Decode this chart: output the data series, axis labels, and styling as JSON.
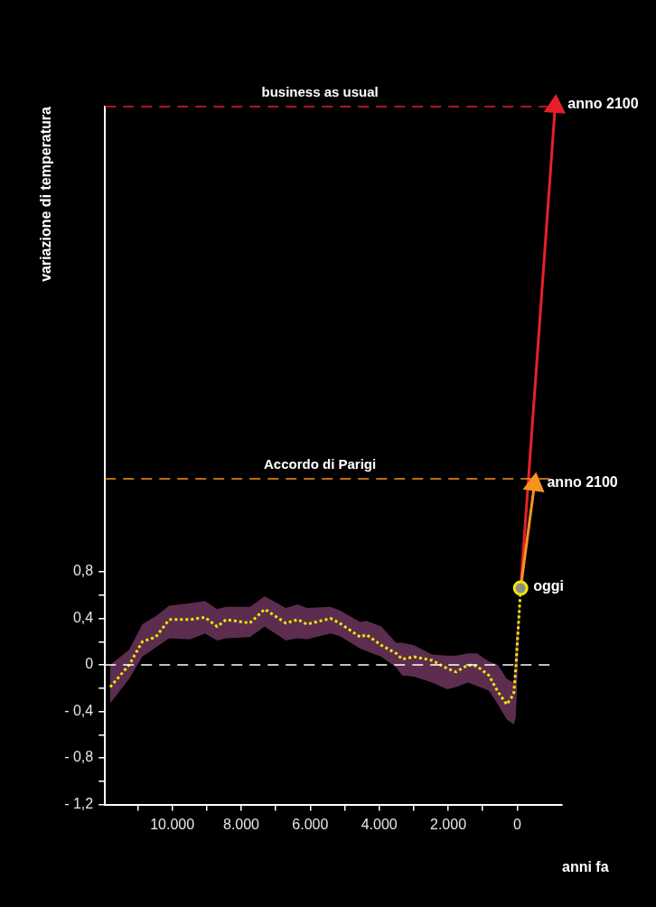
{
  "chart_data": {
    "type": "line",
    "xlabel": "anni fa",
    "ylabel": "variazione di temperatura",
    "xlim": [
      11950,
      -1300
    ],
    "ylim": [
      -1.2,
      4.8
    ],
    "xticks": [
      {
        "value": 11000,
        "label": null
      },
      {
        "value": 10000,
        "label": "10.000"
      },
      {
        "value": 9000,
        "label": null
      },
      {
        "value": 8000,
        "label": "8.000"
      },
      {
        "value": 7000,
        "label": null
      },
      {
        "value": 6000,
        "label": "6.000"
      },
      {
        "value": 5000,
        "label": null
      },
      {
        "value": 4000,
        "label": "4.000"
      },
      {
        "value": 3000,
        "label": null
      },
      {
        "value": 2000,
        "label": "2.000"
      },
      {
        "value": 1000,
        "label": null
      },
      0
    ],
    "yticks": [
      {
        "value": -1.2,
        "label": "- 1,2"
      },
      {
        "value": -1.0,
        "label": null
      },
      {
        "value": -0.8,
        "label": "- 0,8"
      },
      {
        "value": -0.6,
        "label": null
      },
      {
        "value": -0.4,
        "label": "- 0,4"
      },
      {
        "value": -0.2,
        "label": null
      },
      0,
      {
        "value": 0.2,
        "label": null
      },
      {
        "value": 0.4,
        "label": "0,4"
      },
      {
        "value": 0.6,
        "label": null
      },
      {
        "value": 0.8,
        "label": "0,8"
      }
    ],
    "grid": false,
    "legend": false,
    "series": [
      {
        "color": "#f2e600",
        "line_style": "dotted",
        "marker": "none",
        "x": [
          11800,
          11250,
          10870,
          10480,
          10090,
          9480,
          9050,
          8700,
          8440,
          7750,
          7320,
          6710,
          6360,
          6100,
          5410,
          5150,
          4550,
          4370,
          3940,
          3510,
          3330,
          2990,
          2470,
          2030,
          1770,
          1430,
          1170,
          820,
          560,
          300,
          100,
          40,
          -100
        ],
        "values": [
          -0.19,
          0.0,
          0.2,
          0.24,
          0.39,
          0.39,
          0.41,
          0.33,
          0.39,
          0.36,
          0.48,
          0.36,
          0.39,
          0.35,
          0.4,
          0.36,
          0.24,
          0.26,
          0.17,
          0.1,
          0.05,
          0.07,
          0.04,
          -0.03,
          -0.06,
          0.0,
          -0.01,
          -0.09,
          -0.23,
          -0.34,
          -0.25,
          -0.03,
          0.66
        ],
        "lower": [
          -0.33,
          -0.12,
          0.07,
          0.15,
          0.23,
          0.22,
          0.27,
          0.21,
          0.23,
          0.24,
          0.33,
          0.21,
          0.23,
          0.22,
          0.27,
          0.25,
          0.14,
          0.12,
          0.07,
          -0.02,
          -0.09,
          -0.1,
          -0.15,
          -0.21,
          -0.19,
          -0.15,
          -0.18,
          -0.22,
          -0.34,
          -0.47,
          -0.51,
          -0.45,
          0.66
        ],
        "upper": [
          0.0,
          0.13,
          0.35,
          0.42,
          0.51,
          0.53,
          0.55,
          0.48,
          0.5,
          0.5,
          0.59,
          0.49,
          0.52,
          0.49,
          0.5,
          0.47,
          0.37,
          0.38,
          0.33,
          0.19,
          0.19,
          0.17,
          0.09,
          0.08,
          0.08,
          0.1,
          0.1,
          0.03,
          0.0,
          -0.12,
          -0.15,
          0.2,
          0.66
        ]
      },
      {
        "color": "#e8202a",
        "line_style": "solid",
        "marker": "triangle",
        "x": [
          -100,
          -1100
        ],
        "values": [
          0.66,
          4.8
        ]
      },
      {
        "color": "#f7931e",
        "line_style": "solid",
        "marker": "triangle",
        "x": [
          -100,
          -500
        ],
        "values": [
          0.66,
          1.55
        ]
      },
      {
        "type": "scatter",
        "color": "#8c8c8c",
        "marker": "circle",
        "x": [
          -100
        ],
        "values": [
          0.66
        ]
      }
    ],
    "ref_lines": [
      {
        "axis": "y",
        "value": 0,
        "label": null,
        "color": "#ffffff",
        "line_style": "dashed"
      },
      {
        "axis": "y",
        "value": 1.6,
        "label": "Accordo di Parigi",
        "color": "#f7931e",
        "line_style": "dashed"
      },
      {
        "axis": "y",
        "value": 4.8,
        "label": "business as usual",
        "color": "#e8202a",
        "line_style": "dashed"
      }
    ],
    "annotations": [
      {
        "text": "oggi",
        "x": -100,
        "y": 0.66
      },
      {
        "text": "anno 2100",
        "x": -1100,
        "y": 4.8
      },
      {
        "text": "anno 2100",
        "x": -500,
        "y": 1.55
      }
    ]
  }
}
